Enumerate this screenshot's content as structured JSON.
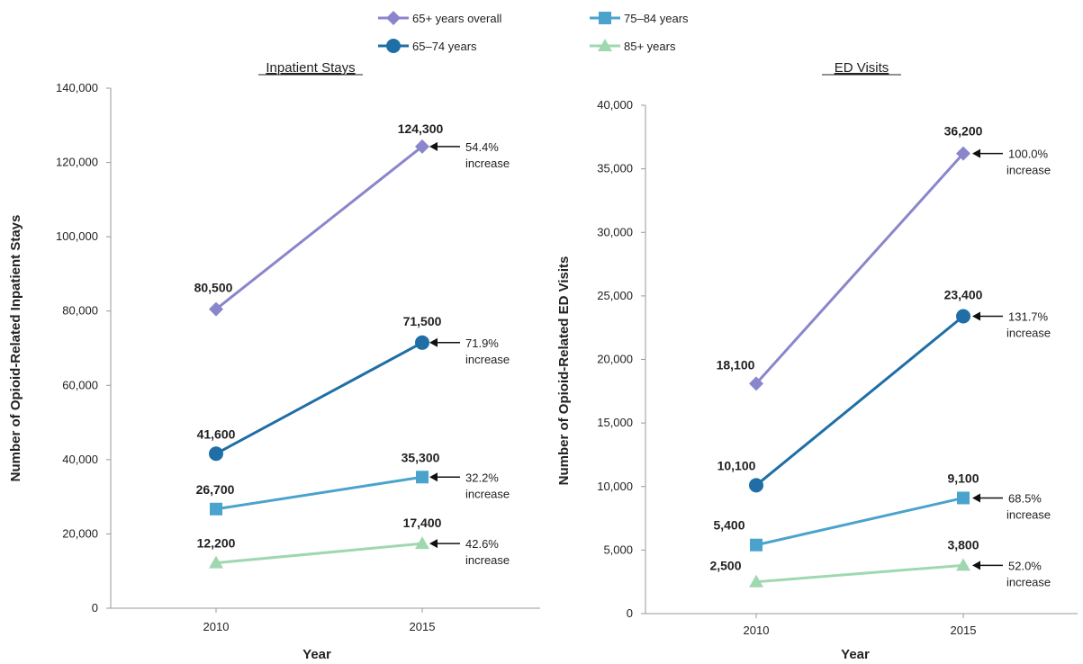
{
  "legend": [
    {
      "label": "65+ years overall",
      "color": "#8a86cc",
      "marker": "diamond"
    },
    {
      "label": "75–84 years",
      "color": "#4aa3cc",
      "marker": "square"
    },
    {
      "label": "65–74 years",
      "color": "#1f6ea6",
      "marker": "circle"
    },
    {
      "label": "85+ years",
      "color": "#9fd8b0",
      "marker": "triangle"
    }
  ],
  "chart_data": [
    {
      "type": "line",
      "title": "Inpatient Stays",
      "xlabel": "Year",
      "ylabel": "Number of Opioid-Related Inpatient Stays",
      "categories": [
        "2010",
        "2015"
      ],
      "ylim": [
        0,
        140000
      ],
      "yticks": [
        "0",
        "20,000",
        "40,000",
        "60,000",
        "80,000",
        "100,000",
        "120,000",
        "140,000"
      ],
      "series": [
        {
          "name": "65+ years overall",
          "values": [
            80500,
            124300
          ],
          "labels": [
            "80,500",
            "124,300"
          ],
          "annotation": [
            "54.4%",
            "increase"
          ]
        },
        {
          "name": "65–74 years",
          "values": [
            41600,
            71500
          ],
          "labels": [
            "41,600",
            "71,500"
          ],
          "annotation": [
            "71.9%",
            "increase"
          ]
        },
        {
          "name": "75–84 years",
          "values": [
            26700,
            35300
          ],
          "labels": [
            "26,700",
            "35,300"
          ],
          "annotation": [
            "32.2%",
            "increase"
          ]
        },
        {
          "name": "85+ years",
          "values": [
            12200,
            17400
          ],
          "labels": [
            "12,200",
            "17,400"
          ],
          "annotation": [
            "42.6%",
            "increase"
          ]
        }
      ]
    },
    {
      "type": "line",
      "title": "ED Visits",
      "xlabel": "Year",
      "ylabel": "Number of Opioid-Related ED Visits",
      "categories": [
        "2010",
        "2015"
      ],
      "ylim": [
        0,
        40000
      ],
      "yticks": [
        "0",
        "5,000",
        "10,000",
        "15,000",
        "20,000",
        "25,000",
        "30,000",
        "35,000",
        "40,000"
      ],
      "series": [
        {
          "name": "65+ years overall",
          "values": [
            18100,
            36200
          ],
          "labels": [
            "18,100",
            "36,200"
          ],
          "annotation": [
            "100.0%",
            "increase"
          ]
        },
        {
          "name": "65–74 years",
          "values": [
            10100,
            23400
          ],
          "labels": [
            "10,100",
            "23,400"
          ],
          "annotation": [
            "131.7%",
            "increase"
          ]
        },
        {
          "name": "75–84 years",
          "values": [
            5400,
            9100
          ],
          "labels": [
            "5,400",
            "9,100"
          ],
          "annotation": [
            "68.5%",
            "increase"
          ]
        },
        {
          "name": "85+ years",
          "values": [
            2500,
            3800
          ],
          "labels": [
            "2,500",
            "3,800"
          ],
          "annotation": [
            "52.0%",
            "increase"
          ]
        }
      ]
    }
  ]
}
